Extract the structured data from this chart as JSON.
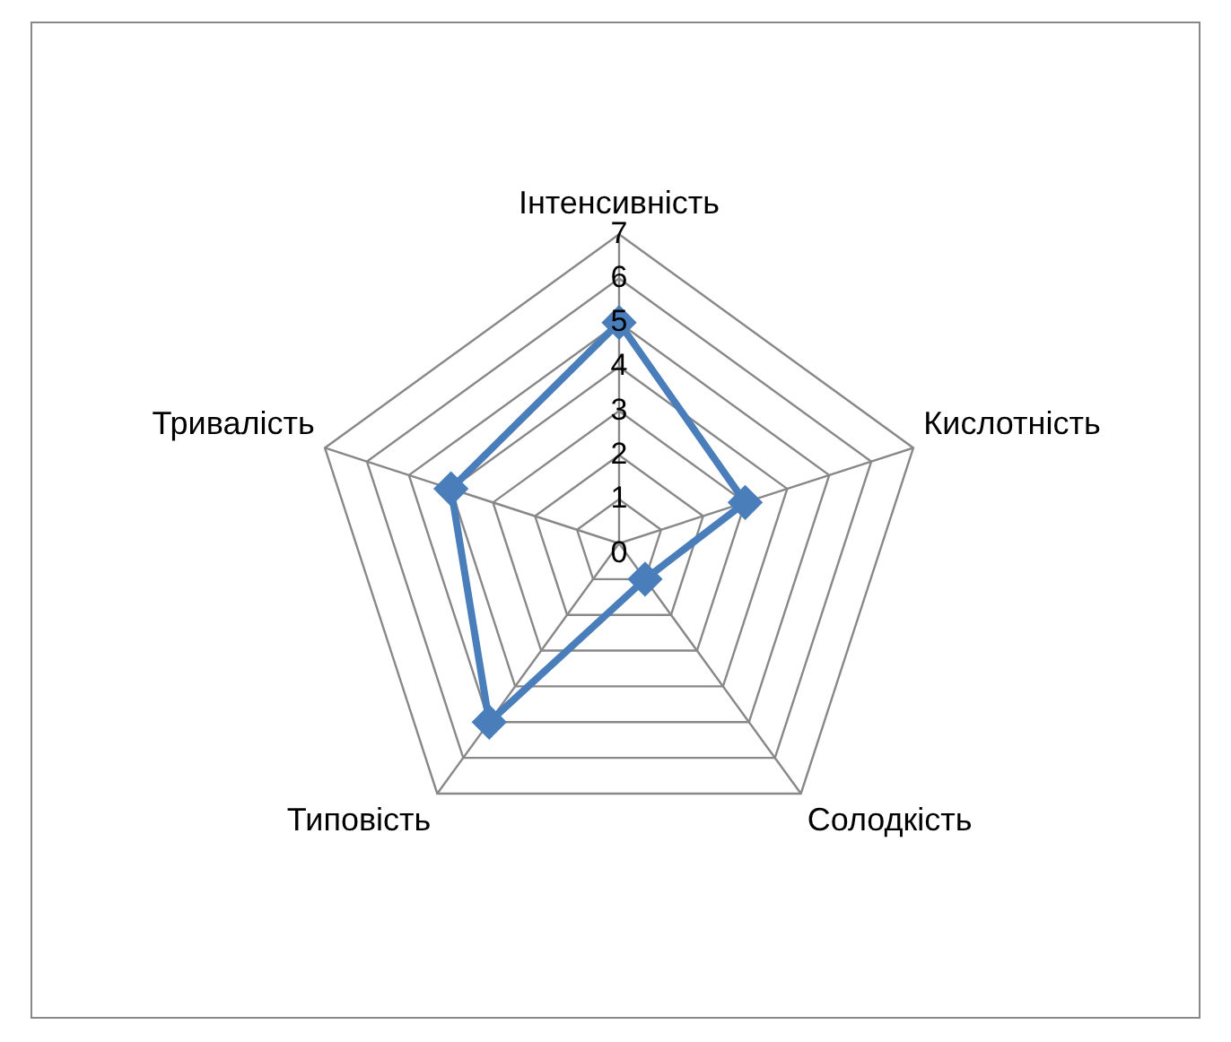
{
  "chart_data": {
    "type": "radar",
    "categories": [
      "Інтенсивність",
      "Кислотність",
      "Солодкість",
      "Типовість",
      "Тривалість"
    ],
    "series": [
      {
        "color": "#4a7ebb",
        "values": [
          5,
          3,
          1,
          5,
          4
        ]
      }
    ],
    "ylim": [
      0,
      7
    ],
    "yticks": [
      0,
      1,
      2,
      3,
      4,
      5,
      6,
      7
    ],
    "grid": true,
    "legend": false,
    "marker": "diamond",
    "line_style": "solid"
  }
}
